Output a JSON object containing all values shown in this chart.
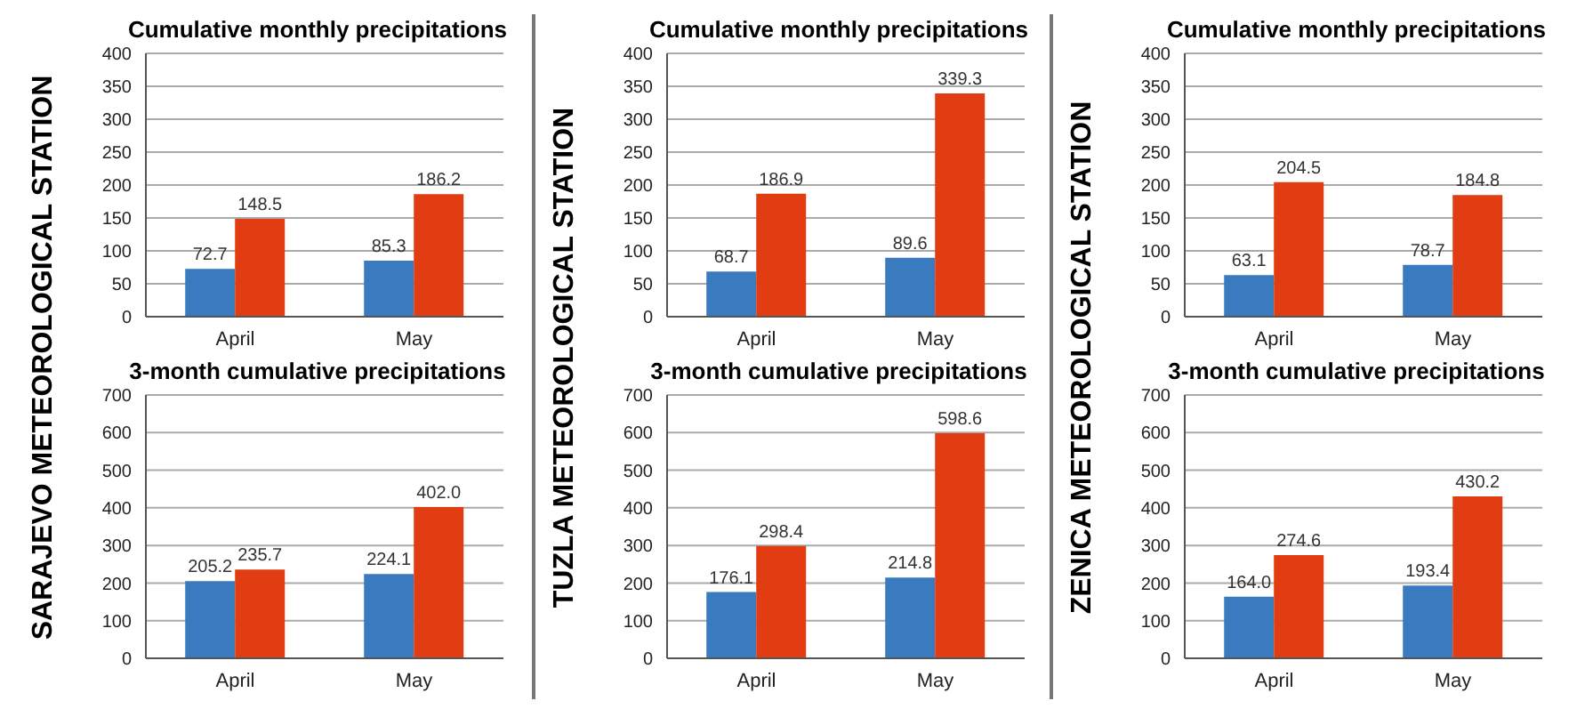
{
  "chart_data": [
    {
      "type": "bar",
      "title": "Cumulative monthly precipitations",
      "ylabel": "SARAJEVO METEOROLOGICAL STATION",
      "categories": [
        "April",
        "May"
      ],
      "series": [
        {
          "color": "#3a7bbf",
          "values": [
            72.7,
            85.3
          ],
          "value_labels": [
            "72.7",
            "85.3"
          ]
        },
        {
          "color": "#e23c12",
          "values": [
            148.5,
            186.2
          ],
          "value_labels": [
            "148.5",
            "186.2"
          ]
        }
      ],
      "ylim": [
        0,
        400
      ],
      "yticks": [
        0,
        50,
        100,
        150,
        200,
        250,
        300,
        350,
        400
      ],
      "grid": "y"
    },
    {
      "type": "bar",
      "title": "3-month cumulative precipitations",
      "categories": [
        "April",
        "May"
      ],
      "series": [
        {
          "color": "#3a7bbf",
          "values": [
            205.2,
            224.1
          ],
          "value_labels": [
            "205.2",
            "224.1"
          ]
        },
        {
          "color": "#e23c12",
          "values": [
            235.7,
            402
          ],
          "value_labels": [
            "235.7",
            "402.0"
          ]
        }
      ],
      "ylim": [
        0,
        700
      ],
      "yticks": [
        0,
        100,
        200,
        300,
        400,
        500,
        600,
        700
      ],
      "grid": "y"
    },
    {
      "type": "bar",
      "title": "Cumulative monthly precipitations",
      "ylabel": "TUZLA METEOROLOGICAL STATION",
      "categories": [
        "April",
        "May"
      ],
      "series": [
        {
          "color": "#3a7bbf",
          "values": [
            68.7,
            89.6
          ],
          "value_labels": [
            "68.7",
            "89.6"
          ]
        },
        {
          "color": "#e23c12",
          "values": [
            186.9,
            339.3
          ],
          "value_labels": [
            "186.9",
            "339.3"
          ]
        }
      ],
      "ylim": [
        0,
        400
      ],
      "yticks": [
        0,
        50,
        100,
        150,
        200,
        250,
        300,
        350,
        400
      ],
      "grid": "y"
    },
    {
      "type": "bar",
      "title": "3-month cumulative precipitations",
      "categories": [
        "April",
        "May"
      ],
      "series": [
        {
          "color": "#3a7bbf",
          "values": [
            176.1,
            214.8
          ],
          "value_labels": [
            "176.1",
            "214.8"
          ]
        },
        {
          "color": "#e23c12",
          "values": [
            298.4,
            598.6
          ],
          "value_labels": [
            "298.4",
            "598.6"
          ]
        }
      ],
      "ylim": [
        0,
        700
      ],
      "yticks": [
        0,
        100,
        200,
        300,
        400,
        500,
        600,
        700
      ],
      "grid": "y"
    },
    {
      "type": "bar",
      "title": "Cumulative monthly precipitations",
      "ylabel": "ZENICA METEOROLOGICAL STATION",
      "categories": [
        "April",
        "May"
      ],
      "series": [
        {
          "color": "#3a7bbf",
          "values": [
            63.1,
            78.7
          ],
          "value_labels": [
            "63.1",
            "78.7"
          ]
        },
        {
          "color": "#e23c12",
          "values": [
            204.5,
            184.8
          ],
          "value_labels": [
            "204.5",
            "184.8"
          ]
        }
      ],
      "ylim": [
        0,
        400
      ],
      "yticks": [
        0,
        50,
        100,
        150,
        200,
        250,
        300,
        350,
        400
      ],
      "grid": "y"
    },
    {
      "type": "bar",
      "title": "3-month cumulative precipitations",
      "categories": [
        "April",
        "May"
      ],
      "series": [
        {
          "color": "#3a7bbf",
          "values": [
            164,
            193.4
          ],
          "value_labels": [
            "164.0",
            "193.4"
          ]
        },
        {
          "color": "#e23c12",
          "values": [
            274.6,
            430.2
          ],
          "value_labels": [
            "274.6",
            "430.2"
          ]
        }
      ],
      "ylim": [
        0,
        700
      ],
      "yticks": [
        0,
        100,
        200,
        300,
        400,
        500,
        600,
        700
      ],
      "grid": "y"
    }
  ]
}
